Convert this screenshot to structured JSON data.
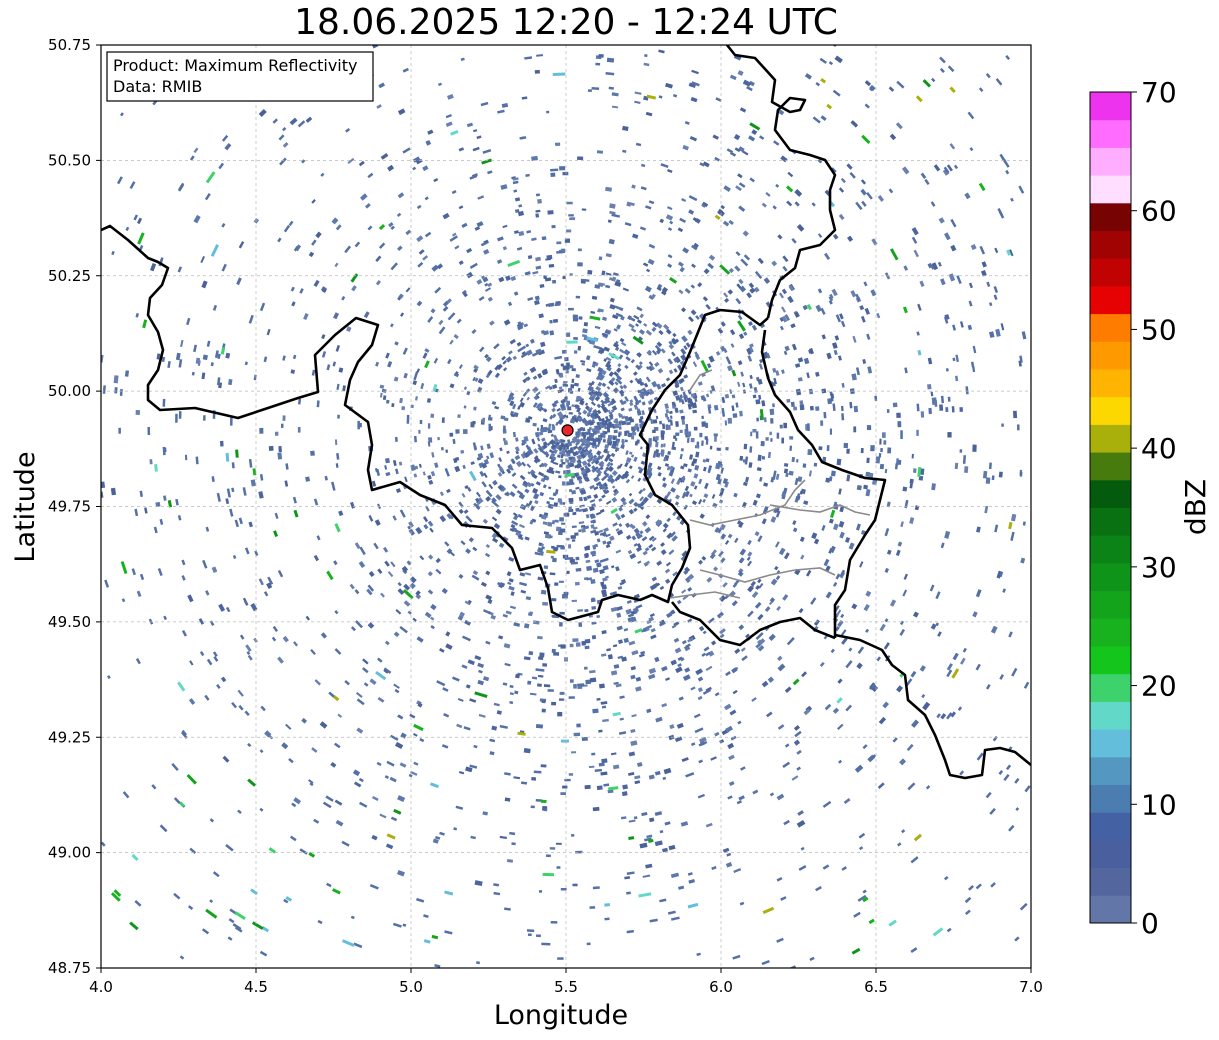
{
  "title": "18.06.2025 12:20 - 12:24 UTC",
  "info_box": {
    "product": "Product: Maximum Reflectivity",
    "data": "Data: RMIB"
  },
  "axes": {
    "xlabel": "Longitude",
    "ylabel": "Latitude",
    "xlim": [
      4.0,
      7.0
    ],
    "ylim": [
      48.75,
      50.75
    ],
    "x_ticks": [
      "4.0",
      "4.5",
      "5.0",
      "5.5",
      "6.0",
      "6.5",
      "7.0"
    ],
    "y_ticks": [
      "48.75",
      "49.00",
      "49.25",
      "49.50",
      "49.75",
      "50.00",
      "50.25",
      "50.50",
      "50.75"
    ],
    "grid": true
  },
  "radar_site": {
    "lon": 5.505,
    "lat": 49.915,
    "color": "#e8262b"
  },
  "colorbar": {
    "label": "dBZ",
    "range": [
      0,
      70
    ],
    "ticks": [
      "0",
      "10",
      "20",
      "30",
      "40",
      "50",
      "60",
      "70"
    ],
    "colors": [
      "#6277a7",
      "#53679e",
      "#4a5f9d",
      "#4462a3",
      "#4b7db1",
      "#5498c1",
      "#62bedb",
      "#61d8c8",
      "#3dd26c",
      "#14c61c",
      "#17b21e",
      "#14a41c",
      "#0e9519",
      "#0c8316",
      "#0a7113",
      "#055b0d",
      "#477b0d",
      "#a9af0b",
      "#fdd800",
      "#feb400",
      "#fe9a00",
      "#fe7c00",
      "#e60202",
      "#c00202",
      "#a10202",
      "#780303",
      "#ffdeff",
      "#ffaeff",
      "#ff6cff",
      "#ee33ee"
    ]
  }
}
